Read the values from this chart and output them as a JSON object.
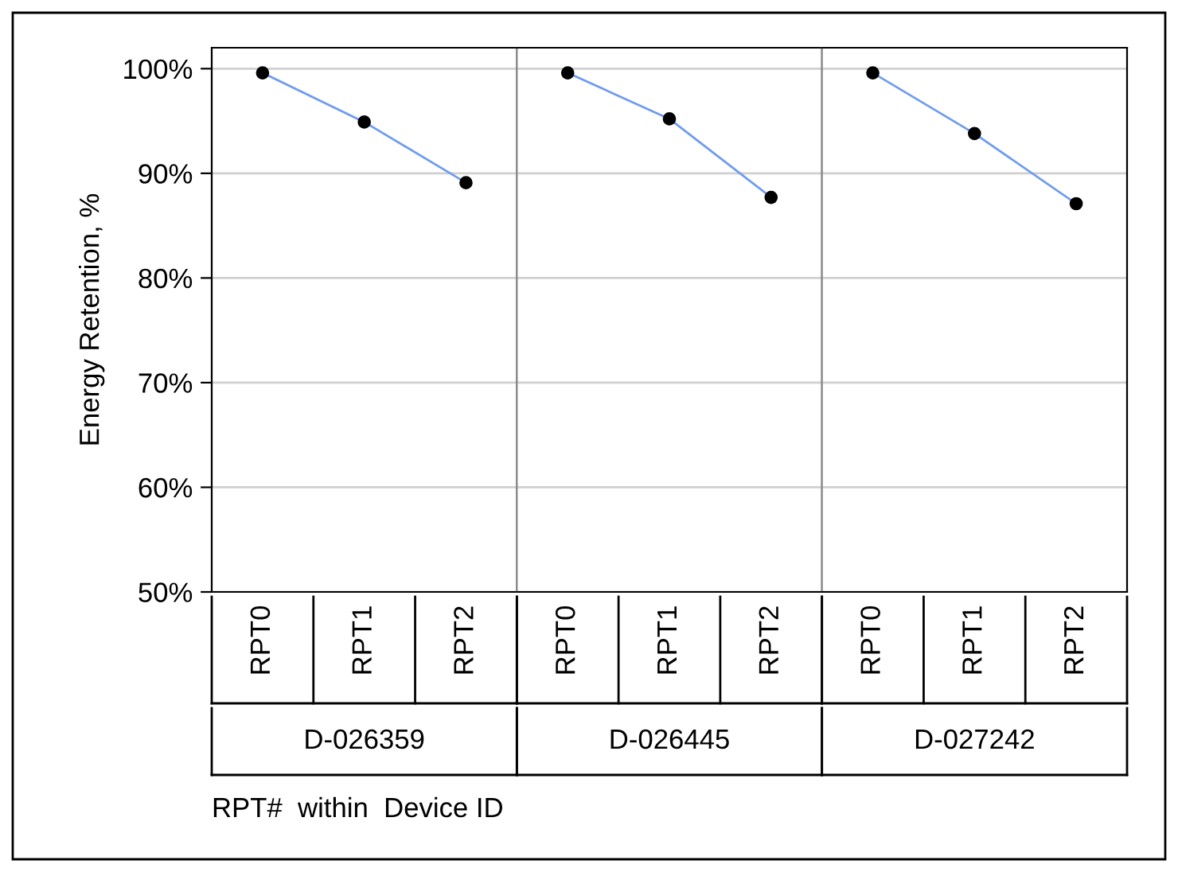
{
  "chart_data": [
    {
      "type": "line",
      "categories": [
        "RPT0",
        "RPT1",
        "RPT2"
      ],
      "xlabel": "D-026359",
      "ylabel": "Energy Retention, %",
      "series": [
        {
          "color": "#6e9cf0",
          "values": [
            99.6,
            94.9,
            89.1
          ]
        }
      ],
      "ylim": [
        50,
        102
      ],
      "yticks": [
        {
          "value": 50,
          "label": "50%"
        },
        {
          "value": 60,
          "label": "60%"
        },
        {
          "value": 70,
          "label": "70%"
        },
        {
          "value": 80,
          "label": "80%"
        },
        {
          "value": 90,
          "label": "90%"
        },
        {
          "value": 100,
          "label": "100%"
        }
      ],
      "grid": "y",
      "marker": "circle",
      "line_style": "solid",
      "annotations": [
        "RPT#  within  Device ID"
      ]
    },
    {
      "type": "line",
      "categories": [
        "RPT0",
        "RPT1",
        "RPT2"
      ],
      "xlabel": "D-026445",
      "series": [
        {
          "color": "#6e9cf0",
          "values": [
            99.6,
            95.2,
            87.7
          ]
        }
      ],
      "ylim": [
        50,
        102
      ],
      "yticks": [
        50,
        60,
        70,
        80,
        90,
        100
      ],
      "grid": "y",
      "marker": "circle",
      "line_style": "solid",
      "tick_labels": "x"
    },
    {
      "type": "line",
      "categories": [
        "RPT0",
        "RPT1",
        "RPT2"
      ],
      "xlabel": "D-027242",
      "series": [
        {
          "color": "#6e9cf0",
          "values": [
            99.6,
            93.8,
            87.1
          ]
        }
      ],
      "ylim": [
        50,
        102
      ],
      "yticks": [
        50,
        60,
        70,
        80,
        90,
        100
      ],
      "grid": "y",
      "marker": "circle",
      "line_style": "solid",
      "tick_labels": "x"
    }
  ]
}
